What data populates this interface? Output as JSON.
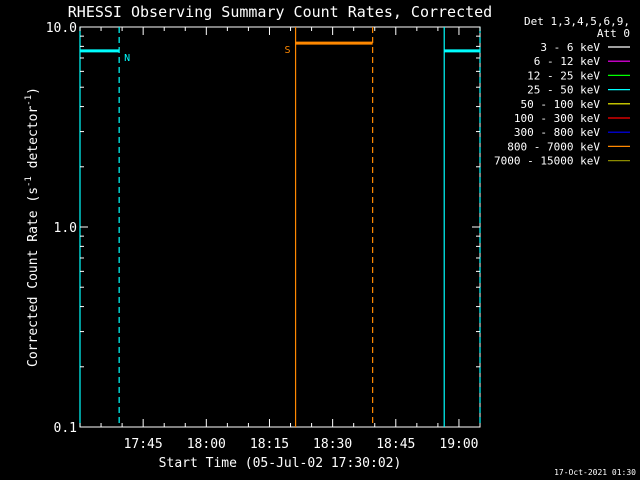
{
  "chart_data": {
    "type": "line",
    "title": "RHESSI Observing Summary Count Rates, Corrected",
    "xlabel": "Start Time (05-Jul-02 17:30:02)",
    "ylabel_main": "Corrected Count Rate (s",
    "ylabel_sup1": "-1",
    "ylabel_mid": " detector",
    "ylabel_sup2": "-1",
    "ylabel_end": ")",
    "x_unit": "minutes after 17:30:02",
    "xlim": [
      0,
      95
    ],
    "ylim": [
      0.1,
      10.0
    ],
    "y_scale": "log",
    "x_ticks": [
      {
        "value": 15,
        "label": "17:45"
      },
      {
        "value": 30,
        "label": "18:00"
      },
      {
        "value": 45,
        "label": "18:15"
      },
      {
        "value": 60,
        "label": "18:30"
      },
      {
        "value": 75,
        "label": "18:45"
      },
      {
        "value": 90,
        "label": "19:00"
      }
    ],
    "y_ticks": [
      {
        "value": 0.1,
        "label": "0.1"
      },
      {
        "value": 1.0,
        "label": "1.0"
      },
      {
        "value": 10.0,
        "label": "10.0"
      }
    ],
    "intervals": [
      {
        "flag": "N",
        "start": 0,
        "end": 9.3,
        "level": 7.6,
        "color": "#00ffff",
        "start_style": "solid",
        "end_style": "dashed",
        "label_side": "right"
      },
      {
        "flag": "S",
        "start": 51.2,
        "end": 69.5,
        "level": 8.3,
        "color": "#ff8800",
        "start_style": "solid",
        "end_style": "dashed",
        "label_side": "left"
      },
      {
        "flag": "",
        "start": 86.5,
        "end": 95,
        "level": 7.6,
        "color": "#00ffff",
        "start_style": "solid",
        "end_style": "dashed",
        "label_side": "none"
      }
    ],
    "legend": {
      "header": [
        "Det 1,3,4,5,6,9,",
        "Att 0"
      ],
      "placement": "right",
      "entries": [
        {
          "name": "3 - 6 keV",
          "color": "#ffffff"
        },
        {
          "name": "6 - 12 keV",
          "color": "#ff00ff"
        },
        {
          "name": "12 - 25 keV",
          "color": "#00ff00"
        },
        {
          "name": "25 - 50 keV",
          "color": "#00ffff"
        },
        {
          "name": "50 - 100 keV",
          "color": "#ffff00"
        },
        {
          "name": "100 - 300 keV",
          "color": "#ff0000"
        },
        {
          "name": "300 - 800 keV",
          "color": "#0000ff"
        },
        {
          "name": "800 - 7000 keV",
          "color": "#ff8800"
        },
        {
          "name": "7000 - 15000 keV",
          "color": "#8b8b00"
        }
      ]
    },
    "footer": "17-Oct-2021 01:30"
  }
}
